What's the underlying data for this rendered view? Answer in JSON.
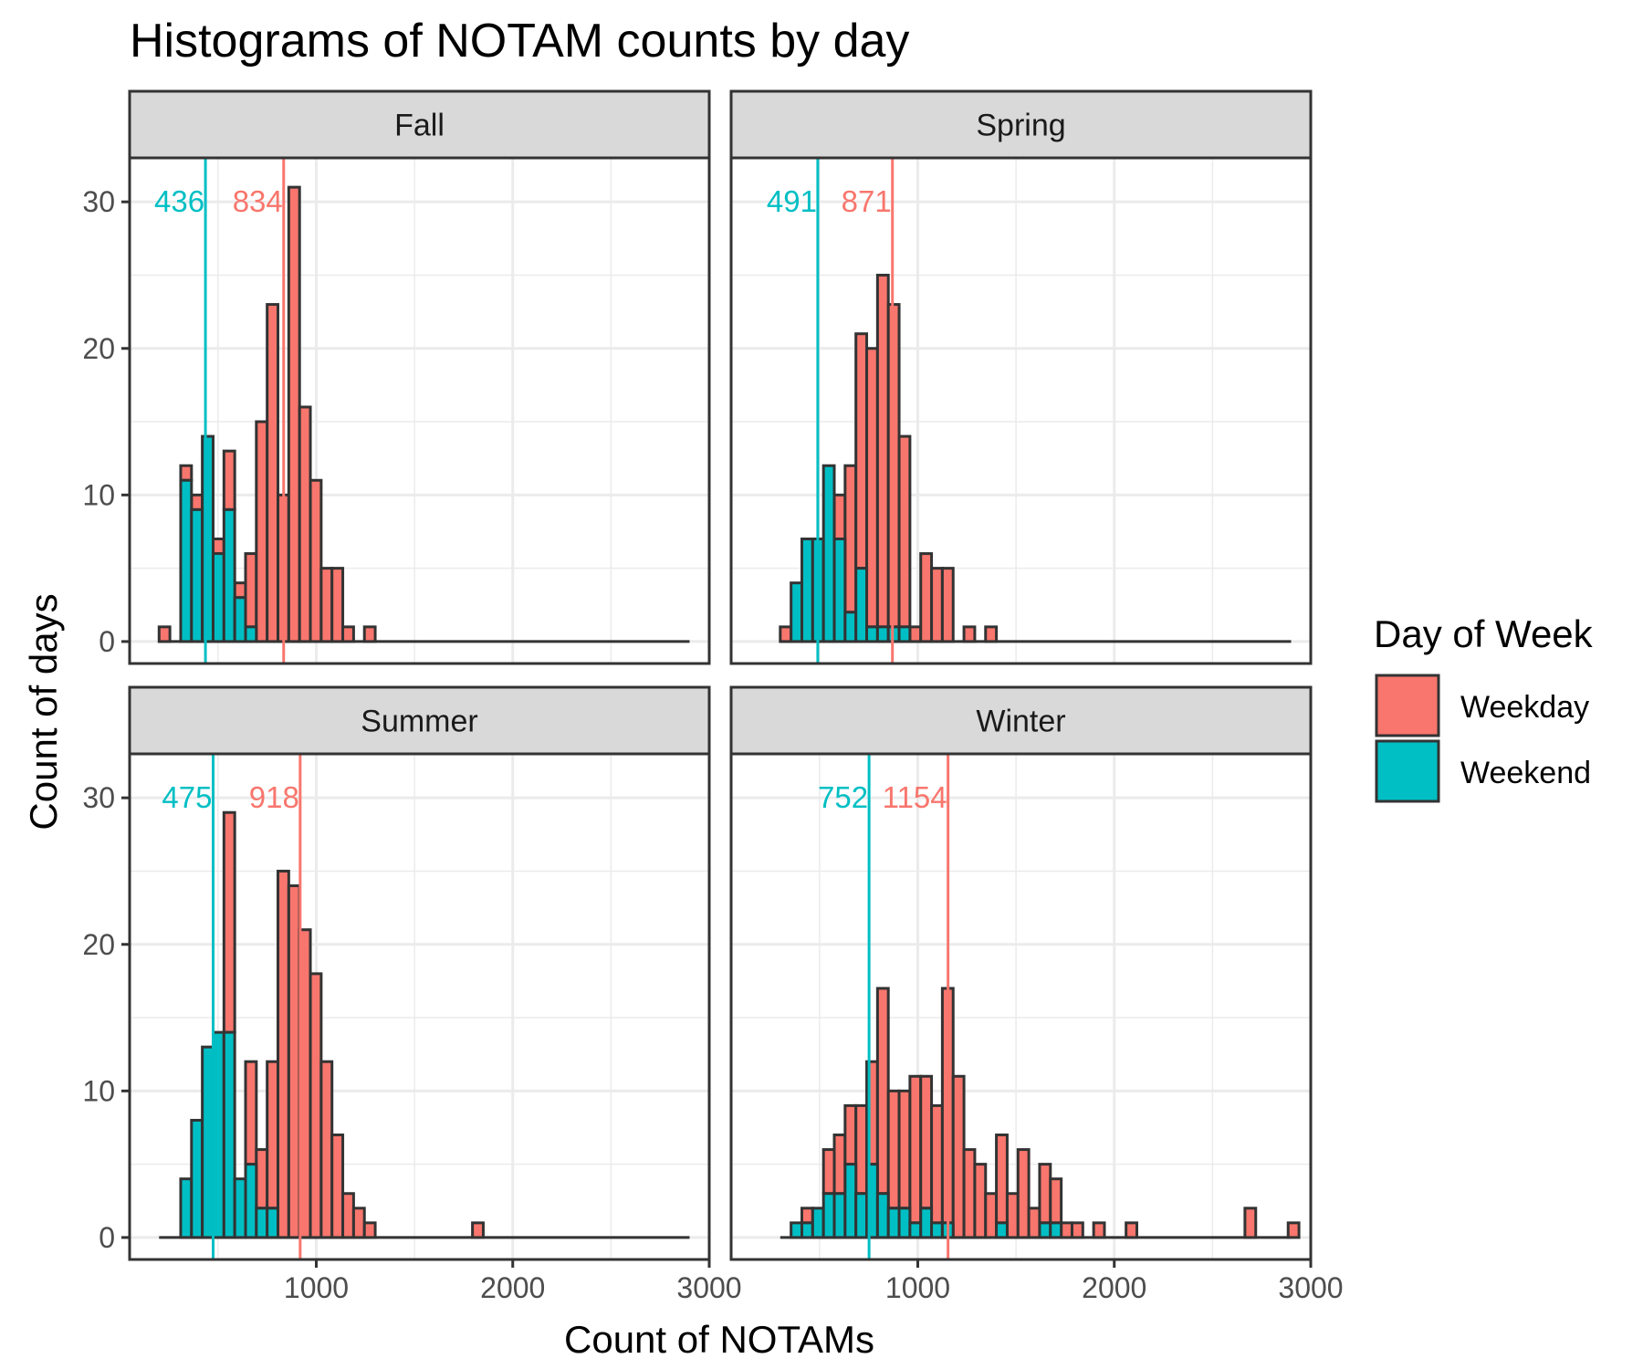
{
  "chart_data": {
    "type": "bar",
    "title": "Histograms of NOTAM counts by day",
    "xlabel": "Count of NOTAMs",
    "ylabel": "Count of days",
    "xlim": [
      50,
      3000
    ],
    "ylim": [
      -1.5,
      33
    ],
    "x_ticks": [
      1000,
      2000,
      3000
    ],
    "y_ticks": [
      0,
      10,
      20,
      30
    ],
    "bin_width": 55,
    "grid": true,
    "legend": {
      "title": "Day of Week",
      "placement": "right",
      "entries": [
        {
          "name": "Weekday",
          "color": "#F8766D"
        },
        {
          "name": "Weekend",
          "color": "#00BFC4"
        }
      ]
    },
    "panels": [
      {
        "name": "Fall",
        "range": [
          200,
          2900
        ],
        "weekday_bins": [
          [
            200,
            1
          ],
          [
            310,
            1
          ],
          [
            365,
            1
          ],
          [
            475,
            1
          ],
          [
            530,
            4
          ],
          [
            585,
            1
          ],
          [
            640,
            5
          ],
          [
            695,
            15
          ],
          [
            750,
            23
          ],
          [
            805,
            10
          ],
          [
            860,
            31
          ],
          [
            915,
            16
          ],
          [
            970,
            11
          ],
          [
            1025,
            5
          ],
          [
            1080,
            5
          ],
          [
            1135,
            1
          ],
          [
            1245,
            1
          ]
        ],
        "weekend_bins": [
          [
            310,
            11
          ],
          [
            365,
            9
          ],
          [
            420,
            14
          ],
          [
            475,
            6
          ],
          [
            530,
            9
          ],
          [
            585,
            3
          ],
          [
            640,
            1
          ]
        ],
        "weekday_mean": 834,
        "weekend_mean": 436
      },
      {
        "name": "Spring",
        "range": [
          300,
          2900
        ],
        "weekday_bins": [
          [
            300,
            1
          ],
          [
            575,
            3
          ],
          [
            630,
            10
          ],
          [
            685,
            16
          ],
          [
            740,
            19
          ],
          [
            795,
            24
          ],
          [
            850,
            22
          ],
          [
            905,
            13
          ],
          [
            960,
            1
          ],
          [
            1015,
            6
          ],
          [
            1070,
            5
          ],
          [
            1125,
            5
          ],
          [
            1235,
            1
          ],
          [
            1345,
            1
          ]
        ],
        "weekend_bins": [
          [
            355,
            4
          ],
          [
            410,
            7
          ],
          [
            465,
            7
          ],
          [
            520,
            12
          ],
          [
            575,
            7
          ],
          [
            630,
            2
          ],
          [
            685,
            5
          ],
          [
            740,
            1
          ],
          [
            795,
            1
          ],
          [
            850,
            1
          ],
          [
            905,
            1
          ]
        ],
        "weekday_mean": 871,
        "weekend_mean": 491
      },
      {
        "name": "Summer",
        "range": [
          200,
          2900
        ],
        "weekday_bins": [
          [
            530,
            15
          ],
          [
            640,
            7
          ],
          [
            695,
            4
          ],
          [
            750,
            10
          ],
          [
            805,
            25
          ],
          [
            860,
            24
          ],
          [
            915,
            21
          ],
          [
            970,
            18
          ],
          [
            1025,
            12
          ],
          [
            1080,
            7
          ],
          [
            1135,
            3
          ],
          [
            1190,
            2
          ],
          [
            1245,
            1
          ],
          [
            1795,
            1
          ]
        ],
        "weekend_bins": [
          [
            310,
            4
          ],
          [
            365,
            8
          ],
          [
            420,
            13
          ],
          [
            475,
            14
          ],
          [
            530,
            14
          ],
          [
            585,
            4
          ],
          [
            640,
            5
          ],
          [
            695,
            2
          ],
          [
            750,
            2
          ]
        ],
        "weekday_mean": 918,
        "weekend_mean": 475
      },
      {
        "name": "Winter",
        "range": [
          300,
          2900
        ],
        "weekday_bins": [
          [
            410,
            1
          ],
          [
            520,
            3
          ],
          [
            575,
            4
          ],
          [
            630,
            4
          ],
          [
            685,
            6
          ],
          [
            740,
            7
          ],
          [
            795,
            14
          ],
          [
            850,
            8
          ],
          [
            905,
            8
          ],
          [
            960,
            10
          ],
          [
            1015,
            9
          ],
          [
            1070,
            8
          ],
          [
            1125,
            16
          ],
          [
            1180,
            11
          ],
          [
            1235,
            6
          ],
          [
            1290,
            5
          ],
          [
            1345,
            3
          ],
          [
            1400,
            6
          ],
          [
            1455,
            3
          ],
          [
            1510,
            6
          ],
          [
            1565,
            2
          ],
          [
            1620,
            4
          ],
          [
            1675,
            3
          ],
          [
            1730,
            1
          ],
          [
            1785,
            1
          ],
          [
            1895,
            1
          ],
          [
            2060,
            1
          ],
          [
            2665,
            2
          ],
          [
            2885,
            1
          ]
        ],
        "weekend_bins": [
          [
            355,
            1
          ],
          [
            410,
            1
          ],
          [
            465,
            2
          ],
          [
            520,
            3
          ],
          [
            575,
            3
          ],
          [
            630,
            5
          ],
          [
            685,
            3
          ],
          [
            740,
            5
          ],
          [
            795,
            3
          ],
          [
            850,
            2
          ],
          [
            905,
            2
          ],
          [
            960,
            1
          ],
          [
            1015,
            2
          ],
          [
            1070,
            1
          ],
          [
            1125,
            1
          ],
          [
            1400,
            1
          ],
          [
            1620,
            1
          ],
          [
            1675,
            1
          ]
        ],
        "weekday_mean": 1154,
        "weekend_mean": 752
      }
    ]
  }
}
